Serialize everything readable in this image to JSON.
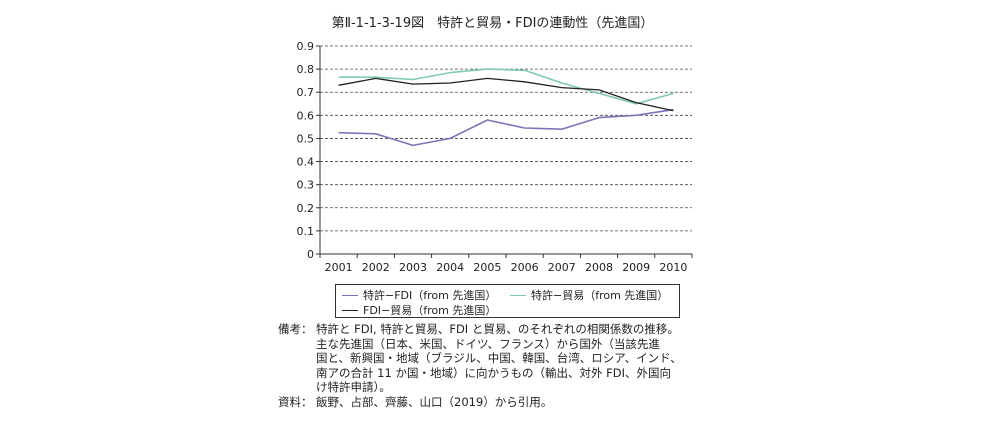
{
  "chart_data": {
    "type": "line",
    "title": "第Ⅱ-1-1-3-19図　特許と貿易・FDIの連動性（先進国）",
    "categories": [
      "2001",
      "2002",
      "2003",
      "2004",
      "2005",
      "2006",
      "2007",
      "2008",
      "2009",
      "2010"
    ],
    "ylim": [
      0,
      0.9
    ],
    "yticks": [
      "0",
      "0.1",
      "0.2",
      "0.3",
      "0.4",
      "0.5",
      "0.6",
      "0.7",
      "0.8",
      "0.9"
    ],
    "xlabel": "",
    "ylabel": "",
    "grid": "dashed horizontal",
    "series": [
      {
        "name": "特許−FDI（from 先進国）",
        "color": "#7b74b6",
        "values": [
          0.525,
          0.52,
          0.47,
          0.5,
          0.58,
          0.545,
          0.54,
          0.59,
          0.6,
          0.625
        ]
      },
      {
        "name": "特許−貿易（from 先進国）",
        "color": "#7fc9b5",
        "values": [
          0.765,
          0.765,
          0.755,
          0.785,
          0.8,
          0.795,
          0.74,
          0.695,
          0.65,
          0.695
        ]
      },
      {
        "name": "FDI−貿易（from 先進国）",
        "color": "#222222",
        "values": [
          0.73,
          0.76,
          0.735,
          0.74,
          0.76,
          0.745,
          0.72,
          0.71,
          0.655,
          0.62
        ]
      }
    ]
  },
  "notes": {
    "biko_head": "備考：",
    "biko_lines": [
      "特許と FDI, 特許と貿易、FDI と貿易、のそれぞれの相関係数の推移。",
      "主な先進国（日本、米国、ドイツ、フランス）から国外（当該先進",
      "国と、新興国・地域（ブラジル、中国、韓国、台湾、ロシア、インド、",
      "南アの合計 11 か国・地域）に向かうもの（輸出、対外 FDI、外国向",
      "け特許申請）。"
    ],
    "source_head": "資料：",
    "source_line": "飯野、占部、齊藤、山口（2019）から引用。"
  }
}
